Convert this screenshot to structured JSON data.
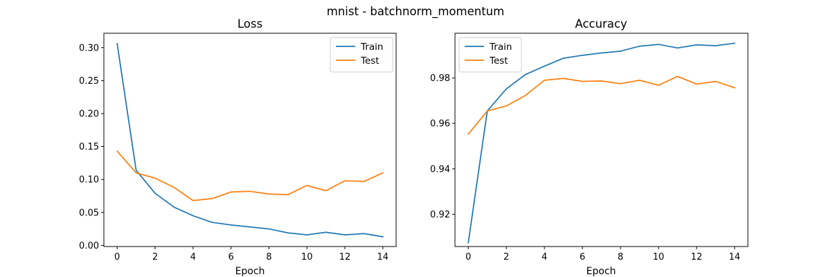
{
  "figure": {
    "suptitle": "mnist - batchnorm_momentum"
  },
  "chart_data": [
    {
      "type": "line",
      "title": "Loss",
      "xlabel": "Epoch",
      "ylabel": "",
      "x": [
        0,
        1,
        2,
        3,
        4,
        5,
        6,
        7,
        8,
        9,
        10,
        11,
        12,
        13,
        14
      ],
      "xlim": [
        -0.7,
        14.7
      ],
      "ylim": [
        -0.0017,
        0.3218
      ],
      "xticks": [
        0,
        2,
        4,
        6,
        8,
        10,
        12,
        14
      ],
      "yticks": [
        0.0,
        0.05,
        0.1,
        0.15,
        0.2,
        0.25,
        0.3
      ],
      "ytick_decimals": 2,
      "grid": false,
      "legend": "top-right",
      "series": [
        {
          "name": "Train",
          "color": "#1f77b4",
          "values": [
            0.306,
            0.114,
            0.079,
            0.058,
            0.045,
            0.035,
            0.031,
            0.028,
            0.025,
            0.019,
            0.016,
            0.02,
            0.016,
            0.018,
            0.013
          ]
        },
        {
          "name": "Test",
          "color": "#ff7f0e",
          "values": [
            0.143,
            0.11,
            0.102,
            0.088,
            0.068,
            0.071,
            0.081,
            0.082,
            0.078,
            0.077,
            0.091,
            0.083,
            0.098,
            0.097,
            0.11
          ]
        }
      ]
    },
    {
      "type": "line",
      "title": "Accuracy",
      "xlabel": "Epoch",
      "ylabel": "",
      "x": [
        0,
        1,
        2,
        3,
        4,
        5,
        6,
        7,
        8,
        9,
        10,
        11,
        12,
        13,
        14
      ],
      "xlim": [
        -0.7,
        14.7
      ],
      "ylim": [
        0.9058,
        0.9997
      ],
      "xticks": [
        0,
        2,
        4,
        6,
        8,
        10,
        12,
        14
      ],
      "yticks": [
        0.92,
        0.94,
        0.96,
        0.98
      ],
      "ytick_decimals": 2,
      "grid": false,
      "legend": "top-left",
      "series": [
        {
          "name": "Train",
          "color": "#1f77b4",
          "values": [
            0.9075,
            0.9655,
            0.9752,
            0.9815,
            0.9852,
            0.9887,
            0.99,
            0.991,
            0.9918,
            0.994,
            0.9948,
            0.9932,
            0.9946,
            0.9942,
            0.9953
          ]
        },
        {
          "name": "Test",
          "color": "#ff7f0e",
          "values": [
            0.9553,
            0.9655,
            0.9677,
            0.9723,
            0.979,
            0.9798,
            0.9785,
            0.9787,
            0.9775,
            0.979,
            0.9768,
            0.9807,
            0.9773,
            0.9785,
            0.9757
          ]
        }
      ]
    }
  ]
}
